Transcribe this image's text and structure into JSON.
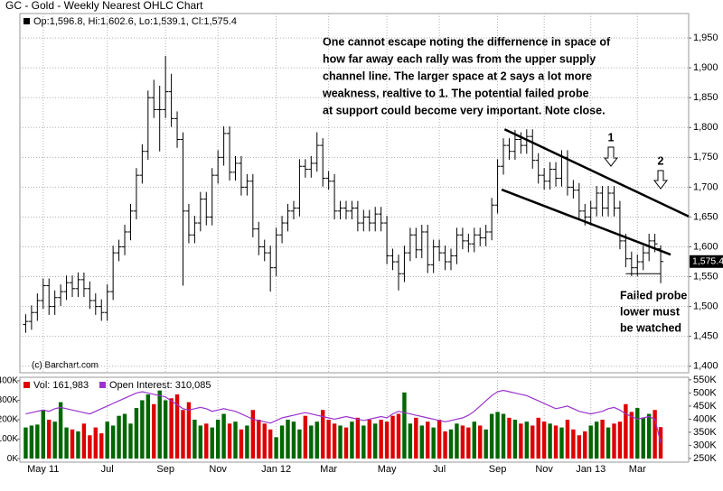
{
  "chart_data": [
    {
      "type": "ohlc",
      "title": "GC - Gold - Weekly Nearest OHLC Chart",
      "legend_text": "Op:1,596.8, Hi:1,602.6, Lo:1,539.1, Cl:1,575.4",
      "credit": "(c) Barchart.com",
      "color": "#000000",
      "close_label": "1,575.4",
      "open": [
        1470,
        1475,
        1490,
        1510,
        1535,
        1500,
        1515,
        1525,
        1540,
        1530,
        1545,
        1530,
        1510,
        1500,
        1490,
        1525,
        1590,
        1600,
        1625,
        1660,
        1720,
        1760,
        1850,
        1830,
        1830,
        1860,
        1815,
        1780,
        1660,
        1620,
        1640,
        1680,
        1650,
        1720,
        1750,
        1790,
        1725,
        1740,
        1700,
        1710,
        1630,
        1600,
        1590,
        1565,
        1620,
        1640,
        1660,
        1665,
        1735,
        1730,
        1740,
        1770,
        1715,
        1710,
        1660,
        1665,
        1660,
        1665,
        1640,
        1650,
        1640,
        1655,
        1640,
        1585,
        1575,
        1555,
        1590,
        1620,
        1595,
        1625,
        1570,
        1600,
        1590,
        1575,
        1585,
        1620,
        1610,
        1605,
        1620,
        1615,
        1625,
        1670,
        1735,
        1770,
        1760,
        1780,
        1770,
        1785,
        1745,
        1720,
        1710,
        1730,
        1715,
        1750,
        1700,
        1695,
        1660,
        1650,
        1665,
        1690,
        1665,
        1690,
        1665,
        1610,
        1580,
        1565,
        1575,
        1590,
        1610,
        1596.8
      ],
      "high": [
        1487,
        1502,
        1522,
        1547,
        1547,
        1527,
        1537,
        1552,
        1552,
        1557,
        1557,
        1542,
        1522,
        1512,
        1537,
        1602,
        1612,
        1637,
        1672,
        1732,
        1772,
        1862,
        1880,
        1870,
        1920,
        1890,
        1827,
        1792,
        1672,
        1652,
        1692,
        1692,
        1732,
        1762,
        1802,
        1802,
        1752,
        1752,
        1722,
        1722,
        1642,
        1612,
        1602,
        1632,
        1652,
        1672,
        1677,
        1747,
        1747,
        1752,
        1792,
        1782,
        1727,
        1722,
        1677,
        1677,
        1677,
        1677,
        1662,
        1662,
        1667,
        1667,
        1652,
        1597,
        1587,
        1602,
        1632,
        1632,
        1637,
        1637,
        1612,
        1612,
        1602,
        1597,
        1632,
        1632,
        1622,
        1632,
        1632,
        1637,
        1682,
        1747,
        1782,
        1782,
        1796,
        1792,
        1797,
        1797,
        1757,
        1732,
        1742,
        1742,
        1762,
        1762,
        1712,
        1707,
        1672,
        1677,
        1702,
        1702,
        1702,
        1702,
        1677,
        1622,
        1592,
        1587,
        1602,
        1622,
        1622,
        1602.6
      ],
      "low": [
        1456,
        1461,
        1476,
        1496,
        1486,
        1486,
        1501,
        1511,
        1516,
        1516,
        1516,
        1496,
        1486,
        1476,
        1476,
        1511,
        1576,
        1586,
        1611,
        1646,
        1706,
        1746,
        1816,
        1760,
        1816,
        1801,
        1766,
        1535,
        1606,
        1606,
        1626,
        1636,
        1636,
        1706,
        1736,
        1711,
        1711,
        1686,
        1686,
        1616,
        1586,
        1576,
        1525,
        1551,
        1606,
        1626,
        1646,
        1651,
        1716,
        1716,
        1726,
        1701,
        1696,
        1646,
        1646,
        1646,
        1646,
        1626,
        1626,
        1626,
        1626,
        1626,
        1571,
        1561,
        1527,
        1541,
        1576,
        1581,
        1581,
        1556,
        1556,
        1576,
        1561,
        1561,
        1571,
        1596,
        1591,
        1591,
        1601,
        1601,
        1611,
        1656,
        1721,
        1746,
        1746,
        1756,
        1756,
        1731,
        1706,
        1696,
        1696,
        1701,
        1701,
        1686,
        1681,
        1646,
        1636,
        1636,
        1651,
        1651,
        1651,
        1651,
        1596,
        1566,
        1551,
        1551,
        1561,
        1576,
        1591,
        1539.1
      ],
      "close": [
        1475,
        1490,
        1510,
        1535,
        1500,
        1515,
        1525,
        1540,
        1530,
        1545,
        1530,
        1510,
        1500,
        1490,
        1525,
        1590,
        1600,
        1625,
        1660,
        1720,
        1760,
        1850,
        1830,
        1830,
        1860,
        1815,
        1780,
        1660,
        1620,
        1640,
        1680,
        1650,
        1720,
        1750,
        1790,
        1725,
        1740,
        1700,
        1710,
        1630,
        1600,
        1590,
        1565,
        1620,
        1640,
        1660,
        1665,
        1735,
        1730,
        1740,
        1770,
        1715,
        1710,
        1660,
        1665,
        1660,
        1665,
        1640,
        1650,
        1640,
        1655,
        1640,
        1585,
        1575,
        1555,
        1590,
        1620,
        1595,
        1625,
        1570,
        1600,
        1590,
        1575,
        1585,
        1620,
        1610,
        1605,
        1620,
        1615,
        1625,
        1670,
        1735,
        1770,
        1760,
        1780,
        1770,
        1785,
        1745,
        1720,
        1710,
        1730,
        1715,
        1750,
        1700,
        1695,
        1660,
        1650,
        1665,
        1690,
        1665,
        1690,
        1665,
        1610,
        1580,
        1565,
        1575,
        1590,
        1610,
        1605,
        1575.4
      ],
      "xlim": [
        -1,
        113.8
      ],
      "xticks": [
        {
          "value": 3,
          "label": "May 11"
        },
        {
          "value": 14,
          "label": "Jul"
        },
        {
          "value": 24,
          "label": "Sep"
        },
        {
          "value": 33,
          "label": "Nov"
        },
        {
          "value": 43,
          "label": "Jan 12"
        },
        {
          "value": 52,
          "label": "Mar"
        },
        {
          "value": 62,
          "label": "May"
        },
        {
          "value": 71,
          "label": "Jul"
        },
        {
          "value": 81,
          "label": "Sep"
        },
        {
          "value": 89,
          "label": "Nov"
        },
        {
          "value": 97,
          "label": "Jan 13"
        },
        {
          "value": 105,
          "label": "Mar"
        }
      ],
      "ylim": [
        1389,
        1991
      ],
      "yticks": [
        {
          "value": 1400,
          "label": "1,400"
        },
        {
          "value": 1450,
          "label": "1,450"
        },
        {
          "value": 1500,
          "label": "1,500"
        },
        {
          "value": 1550,
          "label": "1,550"
        },
        {
          "value": 1600,
          "label": "1,600"
        },
        {
          "value": 1650,
          "label": "1,650"
        },
        {
          "value": 1700,
          "label": "1,700"
        },
        {
          "value": 1750,
          "label": "1,750"
        },
        {
          "value": 1800,
          "label": "1,800"
        },
        {
          "value": 1850,
          "label": "1,850"
        },
        {
          "value": 1900,
          "label": "1,900"
        },
        {
          "value": 1950,
          "label": "1,950"
        }
      ],
      "grid": true,
      "trendlines": [
        {
          "x": [
            82.2,
            113.8
          ],
          "y": [
            1797,
            1651
          ]
        },
        {
          "x": [
            81.7,
            110.7
          ],
          "y": [
            1696,
            1587
          ]
        },
        {
          "x": [
            103,
            109
          ],
          "y": [
            1555,
            1555
          ]
        }
      ],
      "annotation": [
        "One cannot escape noting the differnence in space of",
        "how far away each rally was from the upper supply",
        "channel line.  The larger space at 2 says a lot more",
        "weakness, realtive to 1.  The potential failed probe",
        "at support could become very important.  Note close."
      ],
      "markers": [
        "1",
        "2"
      ],
      "probe_note": [
        "Failed probe",
        "lower must",
        "be watched"
      ]
    },
    {
      "type": "bar",
      "series": [
        {
          "name": "Vol: 161,983",
          "color": "#dd0000",
          "up_color": "#006600",
          "values": [
            160000,
            170000,
            175000,
            250000,
            200000,
            190000,
            290000,
            160000,
            150000,
            140000,
            180000,
            120000,
            160000,
            130000,
            190000,
            170000,
            220000,
            230000,
            180000,
            260000,
            300000,
            330000,
            280000,
            350000,
            300000,
            310000,
            330000,
            250000,
            290000,
            200000,
            170000,
            180000,
            160000,
            200000,
            230000,
            180000,
            190000,
            150000,
            170000,
            250000,
            200000,
            180000,
            150000,
            110000,
            170000,
            200000,
            190000,
            150000,
            220000,
            170000,
            190000,
            250000,
            200000,
            180000,
            170000,
            160000,
            190000,
            210000,
            170000,
            200000,
            180000,
            200000,
            190000,
            220000,
            230000,
            340000,
            180000,
            210000,
            170000,
            190000,
            160000,
            200000,
            140000,
            150000,
            180000,
            170000,
            160000,
            190000,
            170000,
            150000,
            230000,
            240000,
            230000,
            210000,
            200000,
            180000,
            190000,
            170000,
            210000,
            190000,
            180000,
            170000,
            160000,
            200000,
            150000,
            120000,
            140000,
            170000,
            190000,
            200000,
            160000,
            180000,
            190000,
            280000,
            240000,
            260000,
            210000,
            230000,
            250000,
            161983
          ]
        },
        {
          "name": "Open Interest: 310,085",
          "color": "#9933cc",
          "axis": "y2",
          "values": [
            420000,
            425000,
            430000,
            435000,
            430000,
            440000,
            445000,
            440000,
            435000,
            430000,
            425000,
            420000,
            430000,
            440000,
            450000,
            460000,
            470000,
            480000,
            490000,
            500000,
            505000,
            500000,
            495000,
            490000,
            485000,
            470000,
            455000,
            440000,
            435000,
            440000,
            445000,
            440000,
            430000,
            435000,
            440000,
            435000,
            430000,
            420000,
            410000,
            400000,
            395000,
            390000,
            385000,
            395000,
            405000,
            410000,
            415000,
            420000,
            425000,
            420000,
            415000,
            410000,
            405000,
            400000,
            405000,
            410000,
            405000,
            400000,
            395000,
            400000,
            405000,
            410000,
            405000,
            420000,
            430000,
            425000,
            420000,
            415000,
            410000,
            405000,
            400000,
            395000,
            390000,
            395000,
            400000,
            405000,
            415000,
            430000,
            450000,
            470000,
            490000,
            505000,
            510000,
            505000,
            500000,
            495000,
            490000,
            480000,
            470000,
            460000,
            450000,
            440000,
            445000,
            450000,
            440000,
            430000,
            425000,
            420000,
            425000,
            430000,
            440000,
            445000,
            435000,
            420000,
            410000,
            400000,
            405000,
            410000,
            400000,
            310085
          ]
        }
      ],
      "ylim": [
        -18000,
        418000
      ],
      "yticks": [
        {
          "value": 0,
          "label": "0K"
        },
        {
          "value": 100000,
          "label": "100K"
        },
        {
          "value": 200000,
          "label": "200K"
        },
        {
          "value": 300000,
          "label": "300K"
        },
        {
          "value": 400000,
          "label": "400K"
        }
      ],
      "y2lim": [
        236000,
        560000
      ],
      "y2ticks": [
        {
          "value": 250000,
          "label": "250K"
        },
        {
          "value": 300000,
          "label": "300K"
        },
        {
          "value": 350000,
          "label": "350K"
        },
        {
          "value": 400000,
          "label": "400K"
        },
        {
          "value": 450000,
          "label": "450K"
        },
        {
          "value": 500000,
          "label": "500K"
        },
        {
          "value": 550000,
          "label": "550K"
        }
      ],
      "grid": true
    }
  ]
}
